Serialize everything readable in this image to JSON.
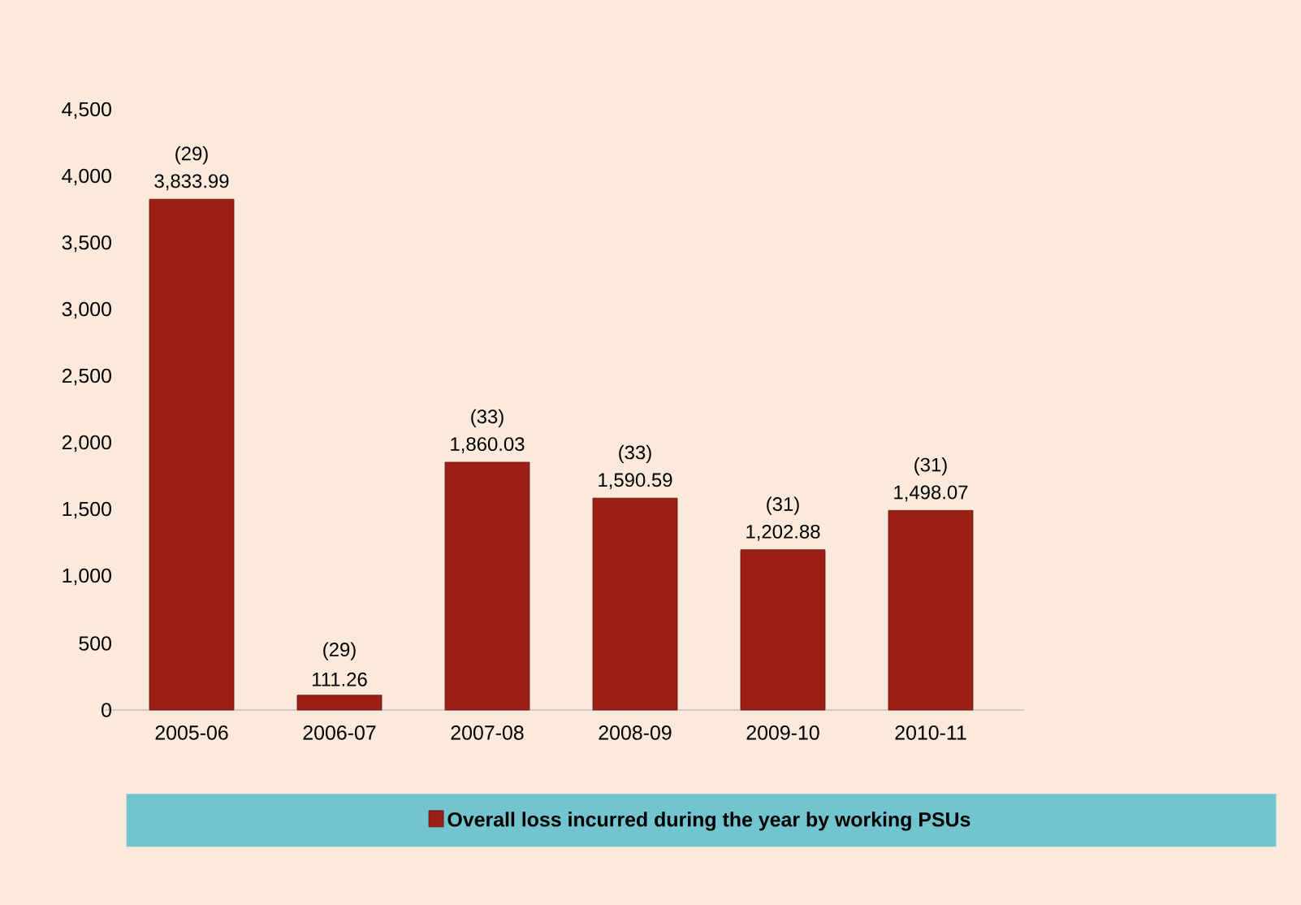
{
  "chart_data": {
    "type": "bar",
    "categories": [
      "2005-06",
      "2006-07",
      "2007-08",
      "2008-09",
      "2009-10",
      "2010-11"
    ],
    "series": [
      {
        "name": "Overall loss incurred during the year by working PSUs",
        "color": "#9c1f16",
        "values": [
          3833.99,
          111.26,
          1860.03,
          1590.59,
          1202.88,
          1498.07
        ],
        "value_labels": [
          "3,833.99",
          "111.26",
          "1,860.03",
          "1,590.59",
          "1,202.88",
          "1,498.07"
        ]
      }
    ],
    "ylim": [
      0,
      4500
    ],
    "yticks": [
      0,
      500,
      {
        "value": 1000,
        "label": "1,000"
      },
      {
        "value": 1500,
        "label": "1,500"
      },
      {
        "value": 2000,
        "label": "2,000"
      },
      {
        "value": 2500,
        "label": "2,500"
      },
      {
        "value": 3000,
        "label": "3,000"
      },
      {
        "value": 3500,
        "label": "3,500"
      },
      {
        "value": 4000,
        "label": "4,000"
      },
      {
        "value": 4500,
        "label": "4,500"
      }
    ],
    "annotations": [
      {
        "text": "(29)",
        "x": "2005-06",
        "y": 3833.99
      },
      {
        "text": "(29)",
        "x": "2006-07",
        "y": 111.26
      },
      {
        "text": "(33)",
        "x": "2007-08",
        "y": 1860.03
      },
      {
        "text": "(33)",
        "x": "2008-09",
        "y": 1590.59
      },
      {
        "text": "(31)",
        "x": "2009-10",
        "y": 1202.88
      },
      {
        "text": "(31)",
        "x": "2010-11",
        "y": 1498.07
      }
    ],
    "grid": false,
    "legend": "bottom"
  }
}
